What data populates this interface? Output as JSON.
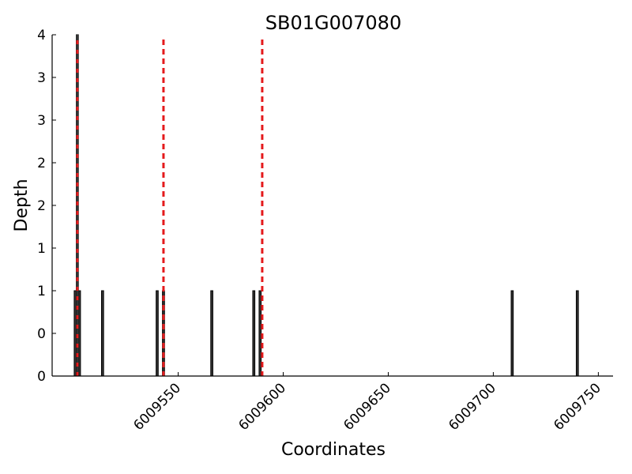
{
  "chart_data": {
    "type": "bar",
    "title": "SB01G007080",
    "xlabel": "Coordinates",
    "ylabel": "Depth",
    "xlim": [
      6009490,
      6009757
    ],
    "ylim": [
      0,
      4
    ],
    "x_ticks": [
      6009550,
      6009600,
      6009650,
      6009700,
      6009750
    ],
    "y_ticks": [
      0,
      0.5,
      1,
      1.5,
      2,
      2.5,
      3,
      3.5,
      4
    ],
    "y_tick_labels": [
      "0",
      "0",
      "1",
      "1",
      "2",
      "2",
      "3",
      "3",
      "4"
    ],
    "bars": [
      {
        "x": 6009501,
        "y": 1
      },
      {
        "x": 6009502,
        "y": 4
      },
      {
        "x": 6009503,
        "y": 1
      },
      {
        "x": 6009514,
        "y": 1
      },
      {
        "x": 6009540,
        "y": 1
      },
      {
        "x": 6009543,
        "y": 1
      },
      {
        "x": 6009566,
        "y": 1
      },
      {
        "x": 6009586,
        "y": 1
      },
      {
        "x": 6009589,
        "y": 1
      },
      {
        "x": 6009709,
        "y": 1
      },
      {
        "x": 6009740,
        "y": 1
      }
    ],
    "vlines": [
      {
        "x": 6009502,
        "style": "dashed",
        "color": "#e41a1c"
      },
      {
        "x": 6009543,
        "style": "dashed",
        "color": "#e41a1c"
      },
      {
        "x": 6009590,
        "style": "dashed",
        "color": "#e41a1c"
      },
      {
        "x": 6009502,
        "style": "dashed",
        "color": "#333333"
      }
    ],
    "bar_color": "#000000",
    "grid": false
  }
}
